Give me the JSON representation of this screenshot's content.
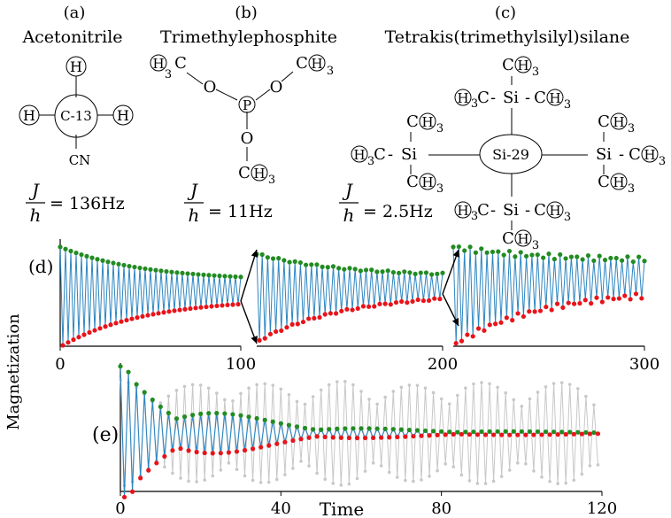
{
  "molecules": [
    {
      "panel": "(a)",
      "name": "Acetonitrile",
      "center": "C-13",
      "atoms": {
        "top": "H",
        "left": "H",
        "right": "H",
        "bottom": "CN"
      },
      "j_num": "J",
      "j_den": "h",
      "j_value": "= 136Hz"
    },
    {
      "panel": "(b)",
      "name": "Trimethylephosphite",
      "center": "P",
      "oxygen": "O",
      "methyl_c": "C",
      "methyl_h": "H",
      "sub3": "3",
      "j_num": "J",
      "j_den": "h",
      "j_value": "= 11Hz"
    },
    {
      "panel": "(c)",
      "name": "Tetrakis(trimethylsilyl)silane",
      "center": "Si-29",
      "si": "Si",
      "methyl_c": "C",
      "methyl_h": "H",
      "sub3": "3",
      "dash": "-",
      "j_num": "J",
      "j_den": "h",
      "j_value": "= 2.5Hz"
    }
  ],
  "chart_data": [
    {
      "type": "line",
      "panel_label": "(d)",
      "xlabel": "",
      "ylabel": "Magnetization",
      "xlim": [
        0,
        300
      ],
      "xticks": [
        "0",
        "100",
        "200",
        "300"
      ],
      "segments": [
        {
          "x_range": [
            0,
            100
          ],
          "upper_start": 0.95,
          "upper_end": 0.66,
          "lower_start": 0.0,
          "lower_end": 0.4
        },
        {
          "x_range": [
            100,
            200
          ],
          "upper_start": 0.92,
          "upper_end": 0.72,
          "lower_start": 0.05,
          "lower_end": 0.47
        },
        {
          "x_range": [
            200,
            300
          ],
          "upper_start": 0.95,
          "upper_end": 0.83,
          "lower_start": 0.02,
          "lower_end": 0.48
        }
      ],
      "series": [
        {
          "color": "#2e86c1"
        },
        {
          "color": "#228b22"
        },
        {
          "color": "#e8141a"
        }
      ]
    },
    {
      "type": "line",
      "panel_label": "(e)",
      "xlabel": "Time",
      "xlim": [
        0,
        120
      ],
      "xticks": [
        "0",
        "40",
        "80",
        "120"
      ],
      "y_baseline": 0.46,
      "series": [
        {
          "color": "#2e86c1"
        },
        {
          "color": "#228b22"
        },
        {
          "color": "#e8141a"
        },
        {
          "color": "#c8c8c8"
        }
      ]
    }
  ],
  "colors": {
    "blue": "#2e86c1",
    "green": "#228b22",
    "red": "#e8141a",
    "gray": "#c8c8c8"
  }
}
